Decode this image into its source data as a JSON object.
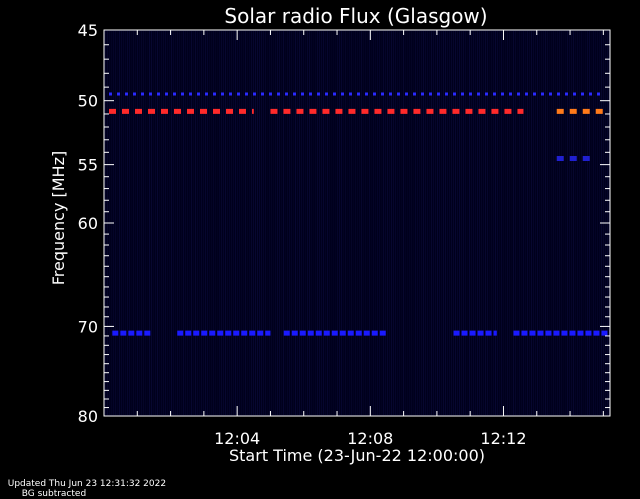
{
  "chart_data": {
    "type": "heatmap",
    "title": "Solar radio Flux (Glasgow)",
    "xlabel": "Start Time (23-Jun-22 12:00:00)",
    "ylabel": "Frequency [MHz]",
    "x_unit": "minutes after 12:00:00",
    "xlim": [
      0,
      15.2
    ],
    "x_ticks": [
      {
        "value": 4,
        "label": "12:04"
      },
      {
        "value": 8,
        "label": "12:08"
      },
      {
        "value": 12,
        "label": "12:12"
      }
    ],
    "y_scale": "log",
    "ylim": [
      45,
      80
    ],
    "y_ticks": [
      45,
      50,
      55,
      60,
      70,
      80
    ],
    "grid": false,
    "background": "#00001c",
    "bands": [
      {
        "freq_mhz": 49.5,
        "color": "#2a2aff",
        "segments": [
          [
            0.15,
            15.0
          ]
        ]
      },
      {
        "freq_mhz": 50.8,
        "color": "#ff2a2a",
        "segments": [
          [
            0.15,
            4.5
          ],
          [
            5.0,
            12.6
          ]
        ]
      },
      {
        "freq_mhz": 50.8,
        "color": "#ff7a1a",
        "segments": [
          [
            13.6,
            15.1
          ]
        ]
      },
      {
        "freq_mhz": 54.5,
        "color": "#2020d0",
        "segments": [
          [
            13.6,
            14.6
          ]
        ]
      },
      {
        "freq_mhz": 70.7,
        "color": "#1a1aff",
        "segments": [
          [
            0.25,
            1.4
          ],
          [
            2.2,
            5.0
          ],
          [
            5.4,
            8.5
          ],
          [
            10.5,
            11.8
          ],
          [
            12.3,
            15.2
          ]
        ]
      }
    ]
  },
  "footer": {
    "updated": "Updated Thu Jun 23 12:31:32 2022",
    "bg_note": "BG subtracted"
  }
}
